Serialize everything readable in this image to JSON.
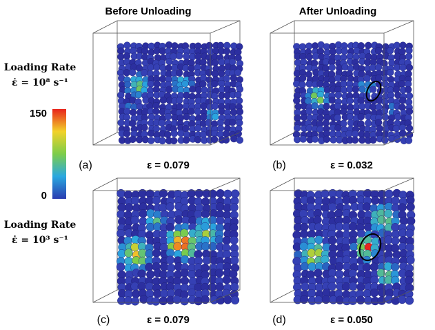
{
  "columns": [
    "Before Unloading",
    "After Unloading"
  ],
  "rows": [
    {
      "label": "Loading Rate",
      "rate": "ε̇ = 10⁸ s⁻¹"
    },
    {
      "label": "Loading Rate",
      "rate": "ε̇ = 10³ s⁻¹"
    }
  ],
  "colorbar": {
    "max": "150",
    "min": "0"
  },
  "panels": [
    {
      "label": "(a)",
      "strain": "ε = 0.079"
    },
    {
      "label": "(b)",
      "strain": "ε = 0.032"
    },
    {
      "label": "(c)",
      "strain": "ε = 0.079"
    },
    {
      "label": "(d)",
      "strain": "ε = 0.050"
    }
  ]
}
